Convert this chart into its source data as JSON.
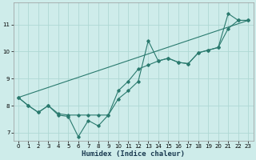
{
  "xlabel": "Humidex (Indice chaleur)",
  "bg_color": "#ceecea",
  "grid_color": "#aed8d4",
  "line_color": "#2a7a6e",
  "xlim": [
    -0.5,
    23.5
  ],
  "ylim": [
    6.7,
    11.8
  ],
  "xticks": [
    0,
    1,
    2,
    3,
    4,
    5,
    6,
    7,
    8,
    9,
    10,
    11,
    12,
    13,
    14,
    15,
    16,
    17,
    18,
    19,
    20,
    21,
    22,
    23
  ],
  "yticks": [
    7,
    8,
    9,
    10,
    11
  ],
  "line_jagged_x": [
    0,
    1,
    2,
    3,
    4,
    5,
    6,
    7,
    8,
    9,
    10,
    11,
    12,
    13,
    14,
    15,
    16,
    17,
    18,
    19,
    20,
    21,
    22,
    23
  ],
  "line_jagged_y": [
    8.3,
    8.0,
    7.75,
    8.0,
    7.65,
    7.6,
    6.85,
    7.45,
    7.25,
    7.65,
    8.25,
    8.55,
    8.9,
    10.4,
    9.65,
    9.75,
    9.6,
    9.55,
    9.95,
    10.05,
    10.15,
    11.4,
    11.15,
    11.15
  ],
  "line_smooth_x": [
    0,
    1,
    2,
    3,
    4,
    5,
    6,
    7,
    8,
    9,
    10,
    11,
    12,
    13,
    14,
    15,
    16,
    17,
    18,
    19,
    20,
    21,
    22,
    23
  ],
  "line_smooth_y": [
    8.3,
    8.0,
    7.75,
    8.0,
    7.7,
    7.65,
    7.65,
    7.65,
    7.65,
    7.65,
    8.55,
    8.9,
    9.35,
    9.5,
    9.65,
    9.75,
    9.6,
    9.55,
    9.95,
    10.05,
    10.15,
    10.85,
    11.15,
    11.15
  ],
  "line_trend_x": [
    0,
    23
  ],
  "line_trend_y": [
    8.3,
    11.15
  ]
}
